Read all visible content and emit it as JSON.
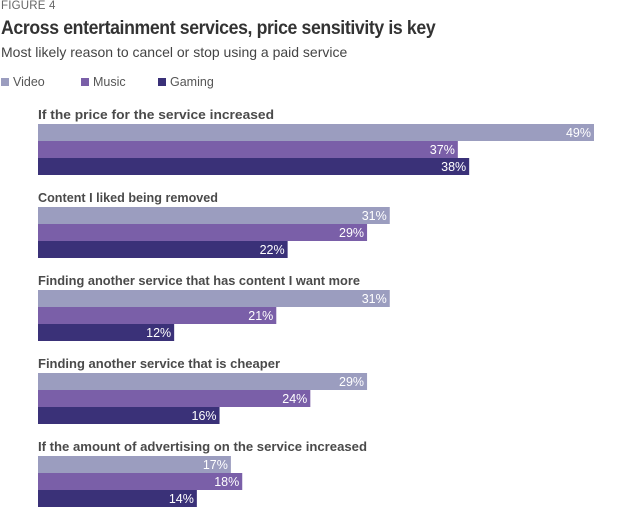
{
  "figure_label": "FIGURE 4",
  "chart_data": {
    "type": "bar",
    "orientation": "horizontal",
    "title": "Across entertainment services, price sensitivity is key",
    "subtitle": "Most likely reason to cancel or stop using a paid service",
    "xlabel": "",
    "ylabel": "",
    "xlim": [
      0,
      49
    ],
    "grid": false,
    "legend_position": "top-left",
    "value_suffix": "%",
    "categories": [
      "If the price for the service increased",
      "Content I liked being removed",
      "Finding another service that has content I want more",
      "Finding another service that is cheaper",
      "If the amount of advertising on the service increased"
    ],
    "series": [
      {
        "name": "Video",
        "color": "#9b9dbf",
        "values": [
          49,
          31,
          31,
          29,
          17
        ]
      },
      {
        "name": "Music",
        "color": "#7a5fa8",
        "values": [
          37,
          29,
          21,
          24,
          18
        ]
      },
      {
        "name": "Gaming",
        "color": "#3a3178",
        "values": [
          38,
          22,
          12,
          16,
          14
        ]
      }
    ]
  }
}
